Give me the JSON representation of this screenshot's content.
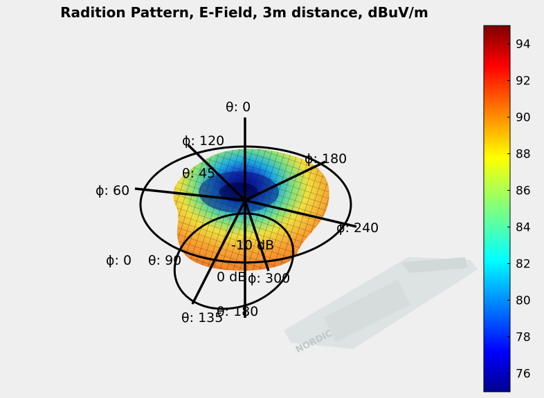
{
  "chart_data": {
    "type": "surface",
    "title": "Radition Pattern, E-Field, 3m distance, dBuV/m",
    "colorbar": {
      "colormap": "jet",
      "range": [
        75,
        95
      ],
      "ticks": [
        "94",
        "92",
        "90",
        "88",
        "86",
        "84",
        "82",
        "80",
        "78",
        "76"
      ]
    },
    "axis_labels": {
      "theta_0": "θ: 0",
      "theta_45": "θ: 45",
      "theta_90": "θ: 90",
      "theta_135": "θ: 135",
      "theta_180": "θ: 180",
      "phi_0": "ϕ: 0",
      "phi_60": "ϕ: 60",
      "phi_120": "ϕ: 120",
      "phi_180": "ϕ: 180",
      "phi_240": "ϕ: 240",
      "phi_300": "ϕ: 300"
    },
    "ring_labels": [
      "0 dB",
      "-10 dB"
    ],
    "logo_text": "NORDIC"
  }
}
